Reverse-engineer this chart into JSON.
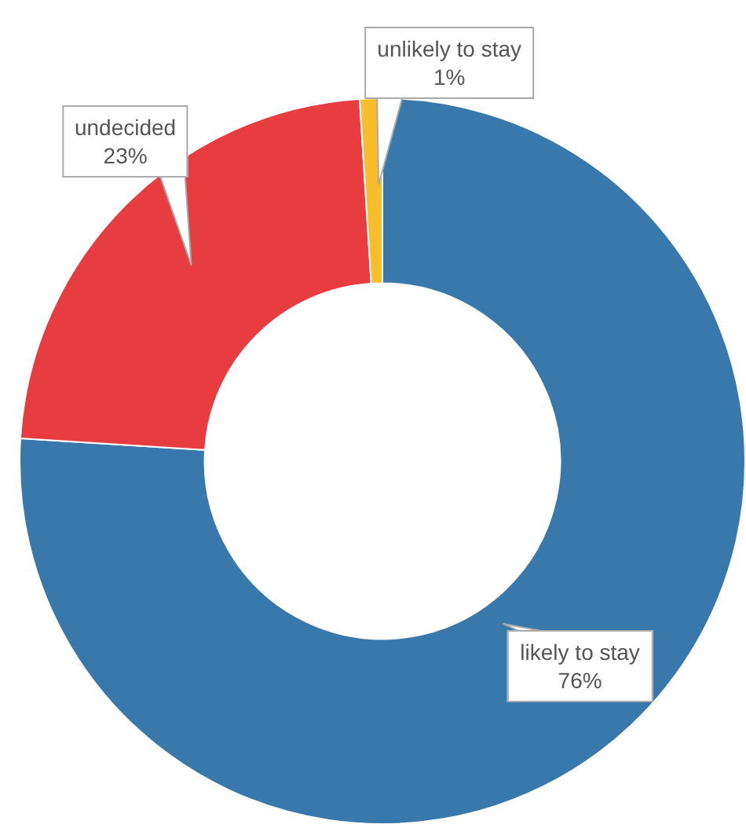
{
  "chart_data": {
    "type": "donut",
    "categories": [
      "likely to stay",
      "undecided",
      "unlikely to stay"
    ],
    "values": [
      76,
      23,
      1
    ],
    "colors": [
      "#3878ab",
      "#e73c40",
      "#f7bd2a"
    ],
    "value_labels": [
      "76%",
      "23%",
      "1%"
    ],
    "legend": false
  }
}
